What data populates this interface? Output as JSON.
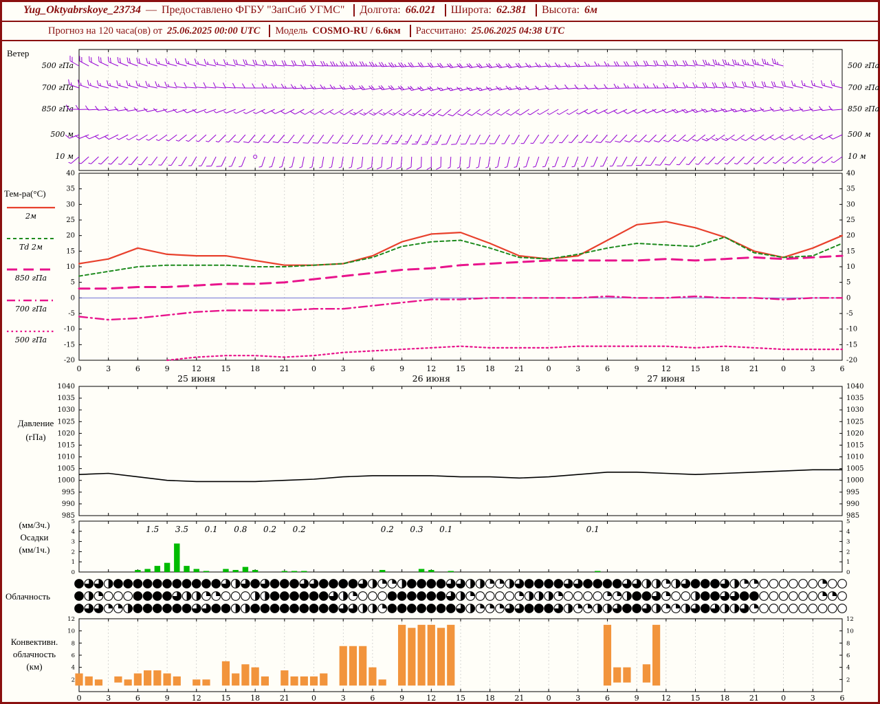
{
  "header": {
    "line1": {
      "station": "Yug_Oktyabrskoye_23734",
      "dash": "—",
      "provider": "Предоставлено ФГБУ \"ЗапСиб УГМС\"",
      "lon_label": "Долгота:",
      "lon": "66.021",
      "lat_label": "Широта:",
      "lat": "62.381",
      "alt_label": "Высота:",
      "alt": "6м"
    },
    "line2": {
      "forecast_label": "Прогноз на 120 часа(ов) от",
      "forecast_start": "25.06.2025 00:00 UTC",
      "model_label": "Модель",
      "model": "COSMO-RU / 6.6км",
      "calc_label": "Рассчитано:",
      "calc_time": "25.06.2025 04:38 UTC"
    }
  },
  "panel_labels": {
    "wind": "Ветер",
    "temp": "Тем-ра(°C)",
    "pressure1": "Давление",
    "pressure2": "(гПа)",
    "precip1": "(мм/3ч.)",
    "precip2": "Осадки",
    "precip3": "(мм/1ч.)",
    "cloud": "Облачность",
    "conv1": "Конвективн.",
    "conv2": "облачность",
    "conv3": "(км)"
  },
  "colors": {
    "accent_maroon": "#8a1010",
    "wind_barbs": "#9400d3",
    "temp_2m": "#e8402c",
    "dewpoint_2m": "#1e8b1e",
    "temp_upper": "#e8148c",
    "pressure_line": "#000000",
    "precip_bars": "#00bb00",
    "convective_bars": "#f2943c",
    "zero_line": "#5a5ad0",
    "grid": "#bbbbbb"
  },
  "chart_data": [
    {
      "panel": "wind",
      "type": "wind-barbs",
      "title": "Ветер",
      "x_hours_step": 3,
      "levels": [
        {
          "label": "500 гПа",
          "max_hour": 72,
          "dirs": [
            300,
            295,
            290,
            285,
            285,
            280,
            280,
            275,
            275,
            270,
            270,
            265,
            265,
            260,
            260,
            260,
            265,
            265,
            270,
            270,
            275,
            275,
            280,
            280,
            285,
            285,
            290
          ],
          "speeds_kt": [
            20,
            20,
            20,
            15,
            15,
            15,
            20,
            20,
            20,
            25,
            25,
            25,
            20,
            20,
            20,
            20,
            15,
            15,
            15,
            20,
            20,
            20,
            25,
            25,
            25,
            20,
            20
          ]
        },
        {
          "label": "700 гПа",
          "max_hour": 78,
          "dirs": [
            290,
            285,
            285,
            280,
            275,
            275,
            270,
            270,
            265,
            265,
            260,
            260,
            255,
            255,
            255,
            260,
            260,
            265,
            265,
            270,
            270,
            275,
            275,
            280,
            280,
            285,
            285
          ],
          "speeds_kt": [
            15,
            15,
            15,
            15,
            10,
            10,
            10,
            15,
            15,
            15,
            20,
            20,
            20,
            15,
            15,
            15,
            10,
            10,
            10,
            15,
            15,
            15,
            20,
            20,
            20,
            15,
            15
          ]
        },
        {
          "label": "850 гПа",
          "max_hour": 78,
          "dirs": [
            270,
            265,
            260,
            255,
            250,
            250,
            245,
            245,
            240,
            240,
            235,
            235,
            230,
            230,
            235,
            235,
            240,
            240,
            245,
            245,
            250,
            250,
            255,
            255,
            260,
            260,
            265
          ],
          "speeds_kt": [
            10,
            10,
            10,
            10,
            10,
            5,
            5,
            10,
            10,
            10,
            15,
            15,
            15,
            10,
            10,
            10,
            5,
            5,
            10,
            10,
            10,
            15,
            15,
            15,
            10,
            10,
            10
          ]
        },
        {
          "label": "500 м",
          "max_hour": 78,
          "dirs": [
            250,
            245,
            240,
            235,
            230,
            225,
            220,
            220,
            215,
            215,
            210,
            210,
            205,
            205,
            210,
            210,
            215,
            220,
            220,
            225,
            225,
            230,
            235,
            235,
            240,
            240,
            245
          ],
          "speeds_kt": [
            10,
            10,
            5,
            5,
            5,
            5,
            10,
            10,
            10,
            10,
            10,
            15,
            15,
            10,
            10,
            5,
            5,
            5,
            10,
            10,
            10,
            10,
            15,
            10,
            10,
            10,
            10
          ]
        },
        {
          "label": "10 м",
          "max_hour": 78,
          "dirs": [
            230,
            225,
            220,
            215,
            210,
            205,
            200,
            195,
            190,
            190,
            185,
            185,
            180,
            185,
            190,
            195,
            200,
            200,
            205,
            210,
            215,
            220,
            225,
            225,
            230,
            230,
            235
          ],
          "speeds_kt": [
            5,
            5,
            5,
            5,
            5,
            10,
            2,
            5,
            5,
            5,
            10,
            10,
            10,
            5,
            5,
            5,
            5,
            5,
            5,
            10,
            10,
            5,
            5,
            5,
            5,
            5,
            5
          ]
        }
      ]
    },
    {
      "panel": "temperature",
      "type": "line",
      "title": "Тем-ра(°C)",
      "ylim": [
        -20,
        40
      ],
      "yticks": [
        40,
        35,
        30,
        25,
        20,
        15,
        10,
        5,
        0,
        -5,
        -10,
        -15,
        -20
      ],
      "zero_line": true,
      "x_hours": [
        0,
        3,
        6,
        9,
        12,
        15,
        18,
        21,
        24,
        27,
        30,
        33,
        36,
        39,
        42,
        45,
        48,
        51,
        54,
        57,
        60,
        63,
        66,
        69,
        72,
        75,
        78
      ],
      "series": [
        {
          "name": "2м",
          "color_key": "t2m",
          "style": "solid",
          "values": [
            11,
            12.5,
            16,
            14,
            13.5,
            13.5,
            12,
            10.5,
            10.5,
            11,
            13.5,
            18,
            20.5,
            21,
            17.5,
            13.5,
            12.5,
            13.5,
            18.5,
            23.5,
            24.5,
            22.5,
            19.5,
            15,
            13,
            16,
            20
          ]
        },
        {
          "name": "Td 2м",
          "color_key": "td2m",
          "style": "dashed",
          "values": [
            7,
            8.5,
            10,
            10.5,
            10.5,
            10.5,
            10,
            10,
            10.5,
            11,
            13,
            16.5,
            18,
            18.5,
            16,
            13,
            12.5,
            14,
            16,
            17.5,
            17,
            16.5,
            19.5,
            14.5,
            13,
            13.5,
            17.5
          ]
        },
        {
          "name": "850 гПа",
          "color_key": "magenta",
          "style": "longdash",
          "values": [
            3,
            3,
            3.5,
            3.5,
            4,
            4.5,
            4.5,
            5,
            6,
            7,
            8,
            9,
            9.5,
            10.5,
            11,
            11.5,
            12,
            12,
            12,
            12,
            12.5,
            12,
            12.5,
            13,
            12.5,
            13,
            13.5
          ]
        },
        {
          "name": "700 гПа",
          "color_key": "magenta",
          "style": "dashdot",
          "values": [
            -6,
            -7,
            -6.5,
            -5.5,
            -4.5,
            -4,
            -4,
            -4,
            -3.5,
            -3.5,
            -2.5,
            -1.5,
            -0.5,
            -0.5,
            0,
            0,
            0,
            0,
            0.5,
            0,
            0,
            0.5,
            0,
            0,
            -0.5,
            0,
            0
          ]
        },
        {
          "name": "500 гПа",
          "color_key": "magenta",
          "style": "dotted",
          "values": [
            null,
            null,
            null,
            -20,
            -19,
            -18.5,
            -18.5,
            -19,
            -18.5,
            -17.5,
            -17,
            -16.5,
            -16,
            -15.5,
            -16,
            -16,
            -16,
            -15.5,
            -15.5,
            -15.5,
            -15.5,
            -16,
            -15.5,
            -16,
            -16.5,
            -16.5,
            -16.5
          ]
        }
      ]
    },
    {
      "panel": "pressure",
      "type": "line",
      "title": "Давление (гПа)",
      "ylim": [
        985,
        1040
      ],
      "yticks": [
        1040,
        1035,
        1030,
        1025,
        1020,
        1015,
        1010,
        1005,
        1000,
        995,
        990,
        985
      ],
      "x_hours": [
        0,
        3,
        6,
        9,
        12,
        15,
        18,
        21,
        24,
        27,
        30,
        33,
        36,
        39,
        42,
        45,
        48,
        51,
        54,
        57,
        60,
        63,
        66,
        69,
        72,
        75,
        78
      ],
      "values": [
        1002.5,
        1003,
        1001.5,
        1000,
        999.5,
        999.5,
        999.5,
        1000,
        1000.5,
        1001.5,
        1002,
        1002,
        1002,
        1001.5,
        1001.5,
        1001,
        1001.5,
        1002.5,
        1003.5,
        1003.5,
        1003,
        1002.5,
        1003,
        1003.5,
        1004,
        1004.5,
        1004.5
      ]
    },
    {
      "panel": "precipitation",
      "type": "bar",
      "title": "Осадки (мм/1ч.)",
      "ylim": [
        0,
        5
      ],
      "yticks": [
        5,
        4,
        3,
        2,
        1,
        0
      ],
      "hourly_bars": [
        [
          6,
          0.2
        ],
        [
          7,
          0.3
        ],
        [
          8,
          0.6
        ],
        [
          9,
          0.9
        ],
        [
          10,
          2.8
        ],
        [
          11,
          0.6
        ],
        [
          12,
          0.3
        ],
        [
          13,
          0.1
        ],
        [
          15,
          0.3
        ],
        [
          16,
          0.2
        ],
        [
          17,
          0.5
        ],
        [
          18,
          0.2
        ],
        [
          21,
          0.1
        ],
        [
          22,
          0.1
        ],
        [
          23,
          0.1
        ],
        [
          31,
          0.2
        ],
        [
          35,
          0.3
        ],
        [
          36,
          0.2
        ],
        [
          38,
          0.1
        ],
        [
          53,
          0.1
        ]
      ],
      "labels_3h": [
        [
          7.5,
          "1.5"
        ],
        [
          10.5,
          "3.5"
        ],
        [
          13.5,
          "0.1"
        ],
        [
          16.5,
          "0.8"
        ],
        [
          19.5,
          "0.2"
        ],
        [
          22.5,
          "0.2"
        ],
        [
          31.5,
          "0.2"
        ],
        [
          34.5,
          "0.3"
        ],
        [
          37.5,
          "0.1"
        ],
        [
          52.5,
          "0.1"
        ]
      ]
    },
    {
      "panel": "cloudiness",
      "type": "symbol-row",
      "title": "Облачность",
      "unit": "okta (доля заливки круга, 0-8)",
      "rows": [
        [
          8,
          6,
          6,
          4,
          8,
          8,
          8,
          8,
          8,
          8,
          8,
          8,
          8,
          8,
          8,
          6,
          4,
          6,
          8,
          6,
          8,
          8,
          8,
          6,
          6,
          8,
          8,
          8,
          8,
          6,
          4,
          2,
          2,
          4,
          8,
          8,
          8,
          8,
          6,
          6,
          4,
          4,
          2,
          2,
          4,
          6,
          8,
          8,
          8,
          8,
          6,
          6,
          8,
          8,
          8,
          8,
          6,
          6,
          4,
          4,
          2,
          4,
          6,
          8,
          8,
          8,
          6,
          4,
          2,
          2,
          0,
          0,
          0,
          0,
          0,
          0,
          2,
          0,
          0
        ],
        [
          8,
          4,
          2,
          0,
          0,
          0,
          8,
          8,
          8,
          8,
          6,
          4,
          4,
          2,
          2,
          0,
          0,
          0,
          4,
          4,
          8,
          8,
          8,
          8,
          8,
          8,
          6,
          4,
          2,
          0,
          0,
          0,
          8,
          8,
          8,
          8,
          8,
          8,
          6,
          4,
          2,
          0,
          0,
          0,
          0,
          2,
          4,
          4,
          4,
          2,
          0,
          0,
          0,
          0,
          2,
          2,
          4,
          8,
          8,
          6,
          2,
          0,
          0,
          4,
          8,
          8,
          6,
          6,
          8,
          8,
          0,
          0,
          0,
          0,
          0,
          0,
          2,
          2,
          0
        ],
        [
          8,
          6,
          6,
          2,
          2,
          4,
          8,
          8,
          8,
          8,
          8,
          8,
          6,
          6,
          8,
          8,
          4,
          4,
          8,
          8,
          8,
          8,
          8,
          8,
          8,
          8,
          8,
          6,
          6,
          4,
          4,
          2,
          8,
          8,
          8,
          8,
          8,
          8,
          8,
          6,
          4,
          2,
          2,
          2,
          6,
          6,
          8,
          8,
          8,
          6,
          4,
          2,
          2,
          4,
          4,
          6,
          8,
          8,
          6,
          4,
          2,
          2,
          4,
          6,
          8,
          6,
          4,
          4,
          6,
          2,
          0,
          0,
          0,
          0,
          0,
          0,
          0,
          0,
          0
        ]
      ]
    },
    {
      "panel": "convective",
      "type": "bar-range",
      "title": "Конвективная облачность (км)",
      "ylim": [
        0,
        12
      ],
      "yticks": [
        12,
        10,
        8,
        6,
        4,
        2
      ],
      "bars": [
        [
          0,
          1,
          3
        ],
        [
          1,
          1,
          2.5
        ],
        [
          2,
          1,
          2
        ],
        [
          4,
          1.5,
          2.5
        ],
        [
          5,
          1,
          2
        ],
        [
          6,
          1,
          3
        ],
        [
          7,
          1,
          3.5
        ],
        [
          8,
          1,
          3.5
        ],
        [
          9,
          1,
          3
        ],
        [
          10,
          1,
          2.5
        ],
        [
          12,
          1,
          2
        ],
        [
          13,
          1,
          2
        ],
        [
          15,
          1,
          5
        ],
        [
          16,
          1,
          3
        ],
        [
          17,
          1,
          4.5
        ],
        [
          18,
          1,
          4
        ],
        [
          19,
          1,
          2.5
        ],
        [
          21,
          1,
          3.5
        ],
        [
          22,
          1,
          2.5
        ],
        [
          23,
          1,
          2.5
        ],
        [
          24,
          1,
          2.5
        ],
        [
          25,
          1,
          3
        ],
        [
          27,
          1,
          7.5
        ],
        [
          28,
          1,
          7.5
        ],
        [
          29,
          1,
          7.5
        ],
        [
          30,
          1,
          4
        ],
        [
          31,
          1,
          2
        ],
        [
          33,
          1,
          11
        ],
        [
          34,
          1,
          10.5
        ],
        [
          35,
          1,
          11
        ],
        [
          36,
          1,
          11
        ],
        [
          37,
          1,
          10.5
        ],
        [
          38,
          1,
          11
        ],
        [
          54,
          1,
          11
        ],
        [
          55,
          1.5,
          4
        ],
        [
          56,
          1.5,
          4
        ],
        [
          58,
          1.5,
          4.5
        ],
        [
          59,
          1,
          11
        ]
      ]
    },
    {
      "panel": "time_axis",
      "type": "axis",
      "hour_labels": [
        "0",
        "3",
        "6",
        "9",
        "12",
        "15",
        "18",
        "21",
        "0",
        "3",
        "6",
        "9",
        "12",
        "15",
        "18",
        "21",
        "0",
        "3",
        "6",
        "9",
        "12",
        "15",
        "18",
        "21",
        "0",
        "3",
        "6"
      ],
      "date_labels": [
        {
          "label": "25 июня",
          "hour": 12
        },
        {
          "label": "26 июня",
          "hour": 36
        },
        {
          "label": "27 июня",
          "hour": 60
        }
      ]
    }
  ]
}
